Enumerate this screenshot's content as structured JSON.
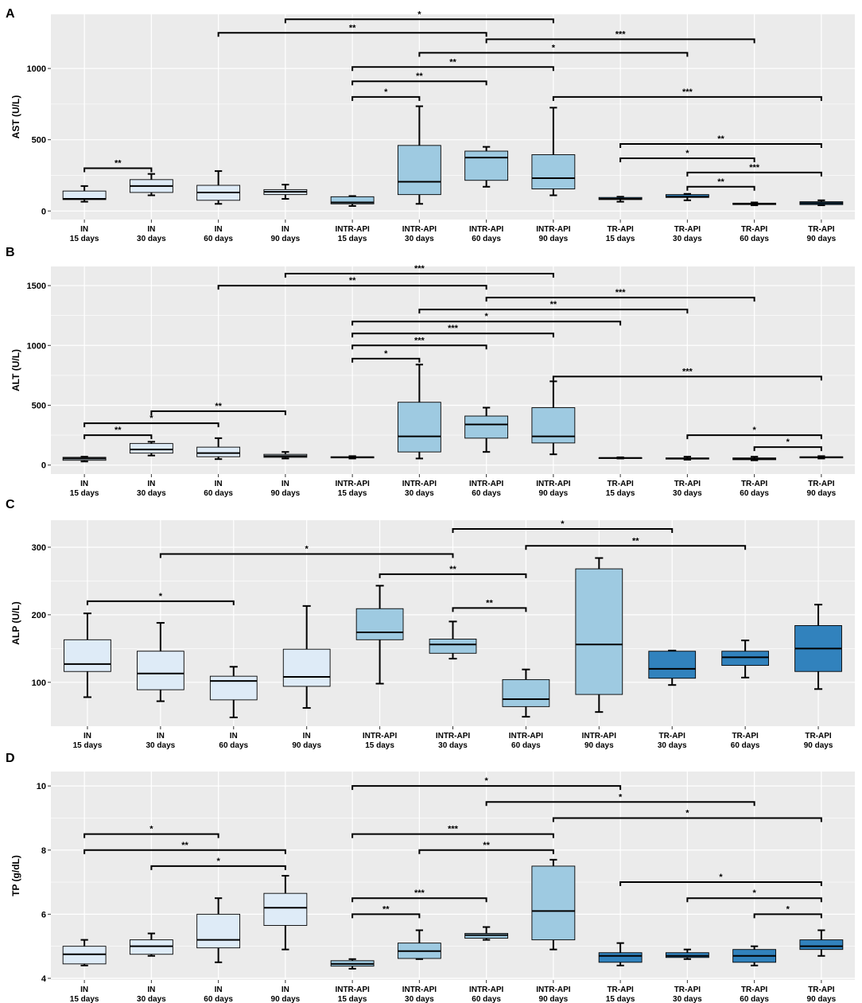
{
  "colors": {
    "panel_bg": "#ebebeb",
    "grid": "#ffffff",
    "IN": "#deebf7",
    "INTR-API": "#9ecae1",
    "TR-API": "#3182bd",
    "outline": "#000000"
  },
  "chart_data": [
    {
      "type": "boxplot",
      "panel": "A",
      "ylabel": "AST (U/L)",
      "ylim": [
        -60,
        1380
      ],
      "yticks": [
        0,
        500,
        1000
      ],
      "categories": [
        {
          "group": "IN",
          "time": "15 days"
        },
        {
          "group": "IN",
          "time": "30 days"
        },
        {
          "group": "IN",
          "time": "60 days"
        },
        {
          "group": "IN",
          "time": "90 days"
        },
        {
          "group": "INTR-API",
          "time": "15 days"
        },
        {
          "group": "INTR-API",
          "time": "30 days"
        },
        {
          "group": "INTR-API",
          "time": "60 days"
        },
        {
          "group": "INTR-API",
          "time": "90 days"
        },
        {
          "group": "TR-API",
          "time": "15 days"
        },
        {
          "group": "TR-API",
          "time": "30 days"
        },
        {
          "group": "TR-API",
          "time": "60 days"
        },
        {
          "group": "TR-API",
          "time": "90 days"
        }
      ],
      "boxes": [
        {
          "min": 65,
          "q1": 80,
          "median": 85,
          "q3": 140,
          "max": 175
        },
        {
          "min": 110,
          "q1": 130,
          "median": 175,
          "q3": 220,
          "max": 260
        },
        {
          "min": 50,
          "q1": 75,
          "median": 130,
          "q3": 180,
          "max": 280
        },
        {
          "min": 85,
          "q1": 115,
          "median": 135,
          "q3": 150,
          "max": 185
        },
        {
          "min": 35,
          "q1": 50,
          "median": 60,
          "q3": 100,
          "max": 105
        },
        {
          "min": 50,
          "q1": 115,
          "median": 205,
          "q3": 460,
          "max": 735
        },
        {
          "min": 170,
          "q1": 215,
          "median": 375,
          "q3": 420,
          "max": 450
        },
        {
          "min": 110,
          "q1": 155,
          "median": 230,
          "q3": 395,
          "max": 725
        },
        {
          "min": 65,
          "q1": 80,
          "median": 85,
          "q3": 95,
          "max": 100
        },
        {
          "min": 75,
          "q1": 95,
          "median": 100,
          "q3": 115,
          "max": 120
        },
        {
          "min": 40,
          "q1": 45,
          "median": 50,
          "q3": 55,
          "max": 60
        },
        {
          "min": 40,
          "q1": 45,
          "median": 55,
          "q3": 65,
          "max": 75
        }
      ],
      "brackets": [
        {
          "from": 1,
          "to": 2,
          "y": 300,
          "label": "**"
        },
        {
          "from": 4,
          "to": 8,
          "y": 1345,
          "label": "*"
        },
        {
          "from": 3,
          "to": 7,
          "y": 1250,
          "label": "**"
        },
        {
          "from": 7,
          "to": 11,
          "y": 1205,
          "label": "***"
        },
        {
          "from": 6,
          "to": 10,
          "y": 1110,
          "label": "*"
        },
        {
          "from": 5,
          "to": 8,
          "y": 1010,
          "label": "**"
        },
        {
          "from": 5,
          "to": 7,
          "y": 910,
          "label": "**"
        },
        {
          "from": 5,
          "to": 6,
          "y": 800,
          "label": "*"
        },
        {
          "from": 8,
          "to": 12,
          "y": 800,
          "label": "***"
        },
        {
          "from": 9,
          "to": 12,
          "y": 470,
          "label": "**"
        },
        {
          "from": 9,
          "to": 11,
          "y": 370,
          "label": "*"
        },
        {
          "from": 10,
          "to": 12,
          "y": 270,
          "label": "***"
        },
        {
          "from": 10,
          "to": 11,
          "y": 170,
          "label": "**"
        }
      ]
    },
    {
      "type": "boxplot",
      "panel": "B",
      "ylabel": "ALT (U/L)",
      "ylim": [
        -75,
        1660
      ],
      "yticks": [
        0,
        500,
        1000,
        1500
      ],
      "categories": [
        {
          "group": "IN",
          "time": "15 days"
        },
        {
          "group": "IN",
          "time": "30 days"
        },
        {
          "group": "IN",
          "time": "60 days"
        },
        {
          "group": "IN",
          "time": "90 days"
        },
        {
          "group": "INTR-API",
          "time": "15 days"
        },
        {
          "group": "INTR-API",
          "time": "30 days"
        },
        {
          "group": "INTR-API",
          "time": "60 days"
        },
        {
          "group": "INTR-API",
          "time": "90 days"
        },
        {
          "group": "TR-API",
          "time": "15 days"
        },
        {
          "group": "TR-API",
          "time": "30 days"
        },
        {
          "group": "TR-API",
          "time": "60 days"
        },
        {
          "group": "TR-API",
          "time": "90 days"
        }
      ],
      "boxes": [
        {
          "min": 30,
          "q1": 40,
          "median": 55,
          "q3": 65,
          "max": 70
        },
        {
          "min": 80,
          "q1": 100,
          "median": 130,
          "q3": 180,
          "max": 195
        },
        {
          "min": 50,
          "q1": 70,
          "median": 100,
          "q3": 150,
          "max": 225
        },
        {
          "min": 55,
          "q1": 65,
          "median": 75,
          "q3": 90,
          "max": 110
        },
        {
          "min": 55,
          "q1": 60,
          "median": 65,
          "q3": 70,
          "max": 75
        },
        {
          "min": 55,
          "q1": 110,
          "median": 240,
          "q3": 525,
          "max": 840
        },
        {
          "min": 110,
          "q1": 225,
          "median": 340,
          "q3": 410,
          "max": 480
        },
        {
          "min": 90,
          "q1": 185,
          "median": 240,
          "q3": 480,
          "max": 700
        },
        {
          "min": 55,
          "q1": 58,
          "median": 60,
          "q3": 62,
          "max": 65
        },
        {
          "min": 45,
          "q1": 50,
          "median": 55,
          "q3": 60,
          "max": 70
        },
        {
          "min": 40,
          "q1": 45,
          "median": 55,
          "q3": 60,
          "max": 70
        },
        {
          "min": 55,
          "q1": 60,
          "median": 65,
          "q3": 70,
          "max": 75
        }
      ],
      "brackets": [
        {
          "from": 1,
          "to": 2,
          "y": 250,
          "label": "**"
        },
        {
          "from": 1,
          "to": 3,
          "y": 350,
          "label": "*"
        },
        {
          "from": 2,
          "to": 4,
          "y": 450,
          "label": "**"
        },
        {
          "from": 4,
          "to": 8,
          "y": 1600,
          "label": "***"
        },
        {
          "from": 3,
          "to": 7,
          "y": 1500,
          "label": "**"
        },
        {
          "from": 7,
          "to": 11,
          "y": 1400,
          "label": "***"
        },
        {
          "from": 6,
          "to": 10,
          "y": 1300,
          "label": "**"
        },
        {
          "from": 5,
          "to": 9,
          "y": 1200,
          "label": "*"
        },
        {
          "from": 5,
          "to": 8,
          "y": 1100,
          "label": "***"
        },
        {
          "from": 5,
          "to": 7,
          "y": 1000,
          "label": "***"
        },
        {
          "from": 5,
          "to": 6,
          "y": 890,
          "label": "*"
        },
        {
          "from": 8,
          "to": 12,
          "y": 740,
          "label": "***"
        },
        {
          "from": 10,
          "to": 12,
          "y": 250,
          "label": "*"
        },
        {
          "from": 11,
          "to": 12,
          "y": 150,
          "label": "*"
        }
      ]
    },
    {
      "type": "boxplot",
      "panel": "C",
      "ylabel": "ALP (U/L)",
      "ylim": [
        35,
        340
      ],
      "yticks": [
        100,
        200,
        300
      ],
      "categories": [
        {
          "group": "IN",
          "time": "15 days"
        },
        {
          "group": "IN",
          "time": "30 days"
        },
        {
          "group": "IN",
          "time": "60 days"
        },
        {
          "group": "IN",
          "time": "90 days"
        },
        {
          "group": "INTR-API",
          "time": "15 days"
        },
        {
          "group": "INTR-API",
          "time": "30 days"
        },
        {
          "group": "INTR-API",
          "time": "60 days"
        },
        {
          "group": "INTR-API",
          "time": "90 days"
        },
        {
          "group": "TR-API",
          "time": "30 days"
        },
        {
          "group": "TR-API",
          "time": "60 days"
        },
        {
          "group": "TR-API",
          "time": "90 days"
        }
      ],
      "boxes": [
        {
          "min": 78,
          "q1": 116,
          "median": 127,
          "q3": 163,
          "max": 202
        },
        {
          "min": 72,
          "q1": 89,
          "median": 113,
          "q3": 146,
          "max": 188
        },
        {
          "min": 48,
          "q1": 74,
          "median": 102,
          "q3": 109,
          "max": 123
        },
        {
          "min": 62,
          "q1": 94,
          "median": 108,
          "q3": 149,
          "max": 213
        },
        {
          "min": 98,
          "q1": 163,
          "median": 174,
          "q3": 209,
          "max": 243
        },
        {
          "min": 135,
          "q1": 143,
          "median": 156,
          "q3": 164,
          "max": 190
        },
        {
          "min": 49,
          "q1": 64,
          "median": 75,
          "q3": 104,
          "max": 119
        },
        {
          "min": 56,
          "q1": 82,
          "median": 156,
          "q3": 268,
          "max": 284
        },
        {
          "min": 96,
          "q1": 106,
          "median": 120,
          "q3": 146,
          "max": 147
        },
        {
          "min": 107,
          "q1": 125,
          "median": 137,
          "q3": 146,
          "max": 162
        },
        {
          "min": 90,
          "q1": 116,
          "median": 150,
          "q3": 184,
          "max": 215
        }
      ],
      "brackets": [
        {
          "from": 1,
          "to": 3,
          "y": 220,
          "label": "*"
        },
        {
          "from": 2,
          "to": 6,
          "y": 290,
          "label": "*"
        },
        {
          "from": 6,
          "to": 9,
          "y": 327,
          "label": "*"
        },
        {
          "from": 7,
          "to": 10,
          "y": 302,
          "label": "**"
        },
        {
          "from": 5,
          "to": 7,
          "y": 260,
          "label": "**"
        },
        {
          "from": 6,
          "to": 7,
          "y": 210,
          "label": "**"
        }
      ]
    },
    {
      "type": "boxplot",
      "panel": "D",
      "ylabel": "TP (g/dL)",
      "ylim": [
        3.95,
        10.45
      ],
      "yticks": [
        4,
        6,
        8,
        10
      ],
      "categories": [
        {
          "group": "IN",
          "time": "15 days"
        },
        {
          "group": "IN",
          "time": "30 days"
        },
        {
          "group": "IN",
          "time": "60 days"
        },
        {
          "group": "IN",
          "time": "90 days"
        },
        {
          "group": "INTR-API",
          "time": "15 days"
        },
        {
          "group": "INTR-API",
          "time": "30 days"
        },
        {
          "group": "INTR-API",
          "time": "60 days"
        },
        {
          "group": "INTR-API",
          "time": "90 days"
        },
        {
          "group": "TR-API",
          "time": "15 days"
        },
        {
          "group": "TR-API",
          "time": "30 days"
        },
        {
          "group": "TR-API",
          "time": "60 days"
        },
        {
          "group": "TR-API",
          "time": "90 days"
        }
      ],
      "boxes": [
        {
          "min": 4.4,
          "q1": 4.45,
          "median": 4.75,
          "q3": 5.0,
          "max": 5.2
        },
        {
          "min": 4.7,
          "q1": 4.75,
          "median": 5.0,
          "q3": 5.2,
          "max": 5.4
        },
        {
          "min": 4.5,
          "q1": 4.95,
          "median": 5.2,
          "q3": 6.0,
          "max": 6.5
        },
        {
          "min": 4.9,
          "q1": 5.65,
          "median": 6.2,
          "q3": 6.65,
          "max": 7.2
        },
        {
          "min": 4.3,
          "q1": 4.38,
          "median": 4.45,
          "q3": 4.55,
          "max": 4.6
        },
        {
          "min": 4.6,
          "q1": 4.62,
          "median": 4.85,
          "q3": 5.1,
          "max": 5.5
        },
        {
          "min": 5.2,
          "q1": 5.25,
          "median": 5.35,
          "q3": 5.4,
          "max": 5.6
        },
        {
          "min": 4.9,
          "q1": 5.2,
          "median": 6.1,
          "q3": 7.5,
          "max": 7.7
        },
        {
          "min": 4.4,
          "q1": 4.5,
          "median": 4.7,
          "q3": 4.8,
          "max": 5.1
        },
        {
          "min": 4.6,
          "q1": 4.65,
          "median": 4.7,
          "q3": 4.8,
          "max": 4.9
        },
        {
          "min": 4.4,
          "q1": 4.5,
          "median": 4.7,
          "q3": 4.9,
          "max": 5.0
        },
        {
          "min": 4.7,
          "q1": 4.9,
          "median": 5.0,
          "q3": 5.2,
          "max": 5.5
        }
      ],
      "brackets": [
        {
          "from": 1,
          "to": 3,
          "y": 8.5,
          "label": "*"
        },
        {
          "from": 1,
          "to": 4,
          "y": 8.0,
          "label": "**"
        },
        {
          "from": 2,
          "to": 4,
          "y": 7.5,
          "label": "*"
        },
        {
          "from": 5,
          "to": 9,
          "y": 10.0,
          "label": "*"
        },
        {
          "from": 7,
          "to": 11,
          "y": 9.5,
          "label": "*"
        },
        {
          "from": 8,
          "to": 12,
          "y": 9.0,
          "label": "*"
        },
        {
          "from": 5,
          "to": 8,
          "y": 8.5,
          "label": "***"
        },
        {
          "from": 6,
          "to": 8,
          "y": 8.0,
          "label": "**"
        },
        {
          "from": 5,
          "to": 7,
          "y": 6.5,
          "label": "***"
        },
        {
          "from": 5,
          "to": 6,
          "y": 6.0,
          "label": "**"
        },
        {
          "from": 9,
          "to": 12,
          "y": 7.0,
          "label": "*"
        },
        {
          "from": 10,
          "to": 12,
          "y": 6.5,
          "label": "*"
        },
        {
          "from": 11,
          "to": 12,
          "y": 6.0,
          "label": "*"
        }
      ]
    }
  ]
}
